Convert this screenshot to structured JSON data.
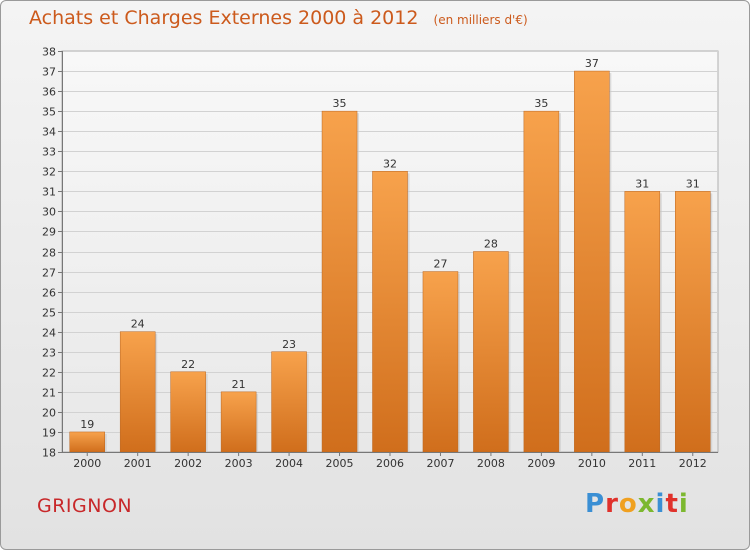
{
  "chart_data": {
    "type": "bar",
    "title": "Achats et Charges Externes 2000 à 2012",
    "subtitle": "(en milliers d'€)",
    "categories": [
      "2000",
      "2001",
      "2002",
      "2003",
      "2004",
      "2005",
      "2006",
      "2007",
      "2008",
      "2009",
      "2010",
      "2011",
      "2012"
    ],
    "values": [
      19,
      24,
      22,
      21,
      23,
      35,
      32,
      27,
      28,
      35,
      37,
      31,
      31
    ],
    "ylim": [
      18,
      38
    ],
    "ytick_step": 1,
    "grid": true,
    "bar_color_top": "#f7a24c",
    "bar_color_bottom": "#d06e1c"
  },
  "footer": {
    "commune": "GRIGNON",
    "logo_text": "Proxiti",
    "logo_colors": [
      "#3a8fd4",
      "#e0312b",
      "#f0a020",
      "#7cb82f",
      "#3a8fd4",
      "#e0312b",
      "#7cb82f"
    ]
  }
}
